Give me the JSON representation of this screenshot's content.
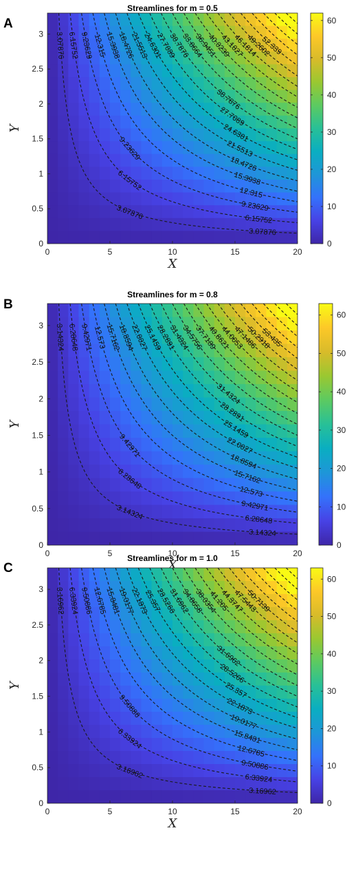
{
  "chart_data": [
    {
      "panel": "A",
      "type": "heatmap",
      "title": "Streamlines for m = 0.5",
      "xlabel": "X",
      "ylabel": "Y",
      "xlim": [
        0,
        20
      ],
      "ylim": [
        0,
        3.3
      ],
      "xticks": [
        "0",
        "5",
        "10",
        "15",
        "20"
      ],
      "yticks": [
        "0",
        "0.5",
        "1",
        "1.5",
        "2",
        "2.5",
        "3"
      ],
      "colorbar": {
        "ticks": [
          "0",
          "10",
          "20",
          "30",
          "40",
          "50",
          "60"
        ],
        "range": [
          0,
          62
        ]
      },
      "contour_levels": [
        "3.07876",
        "6.15752",
        "9.23629",
        "12.315",
        "15.3938",
        "18.4726",
        "21.5513",
        "24.6301",
        "27.7089",
        "30.7876",
        "33.8664",
        "36.9451",
        "40.0239",
        "43.1027",
        "46.1814",
        "49.2602",
        "52.339"
      ]
    },
    {
      "panel": "B",
      "type": "heatmap",
      "title": "Streamlines for m = 0.8",
      "xlabel": "X",
      "ylabel": "Y",
      "xlim": [
        0,
        20
      ],
      "ylim": [
        0,
        3.3
      ],
      "xticks": [
        "0",
        "5",
        "10",
        "15",
        "20"
      ],
      "yticks": [
        "0",
        "0.5",
        "1",
        "1.5",
        "2",
        "2.5",
        "3"
      ],
      "colorbar": {
        "ticks": [
          "0",
          "10",
          "20",
          "30",
          "40",
          "50",
          "60"
        ],
        "range": [
          0,
          63
        ]
      },
      "contour_levels": [
        "3.14324",
        "6.28648",
        "9.42971",
        "12.573",
        "15.7162",
        "18.8594",
        "22.0027",
        "25.1459",
        "28.2891",
        "31.4324",
        "34.5756",
        "37.7189",
        "40.8621",
        "44.0053",
        "47.1486",
        "50.2918",
        "53.435"
      ]
    },
    {
      "panel": "C",
      "type": "heatmap",
      "title": "Streamlines for m = 1.0",
      "xlabel": "X",
      "ylabel": "Y",
      "xlim": [
        0,
        20
      ],
      "ylim": [
        0,
        3.3
      ],
      "xticks": [
        "0",
        "5",
        "10",
        "15",
        "20"
      ],
      "yticks": [
        "0",
        "0.5",
        "1",
        "1.5",
        "2",
        "2.5",
        "3"
      ],
      "colorbar": {
        "ticks": [
          "0",
          "10",
          "20",
          "30",
          "40",
          "50",
          "60"
        ],
        "range": [
          0,
          63
        ]
      },
      "contour_levels": [
        "3.16962",
        "6.33924",
        "9.50886",
        "12.6785",
        "15.8481",
        "19.0177",
        "22.1873",
        "25.357",
        "28.5266",
        "31.6962",
        "34.8658",
        "38.0354",
        "41.205",
        "44.3747",
        "47.5443",
        "50.7139"
      ]
    }
  ],
  "colors": {
    "colormap": [
      "#3e26a8",
      "#4742e5",
      "#3472fb",
      "#1e96d8",
      "#0aaec1",
      "#28c097",
      "#5cca61",
      "#9ac831",
      "#d8bb2a",
      "#fdc828",
      "#f9fb14"
    ],
    "contour_line": "#1a1a1a"
  }
}
